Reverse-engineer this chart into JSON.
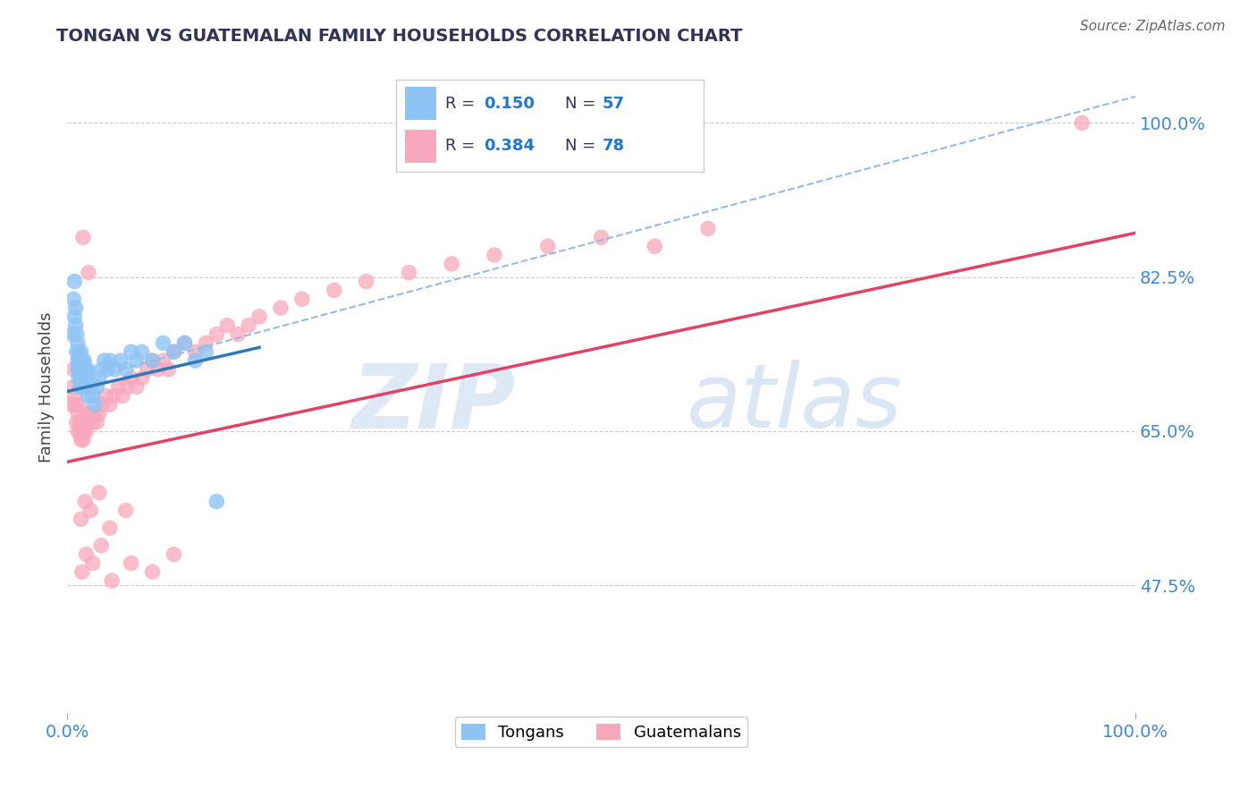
{
  "title": "TONGAN VS GUATEMALAN FAMILY HOUSEHOLDS CORRELATION CHART",
  "source": "Source: ZipAtlas.com",
  "ylabel": "Family Households",
  "xlim": [
    0.0,
    1.0
  ],
  "ylim": [
    0.33,
    1.07
  ],
  "ytick_positions": [
    0.475,
    0.65,
    0.825,
    1.0
  ],
  "ytick_labels": [
    "47.5%",
    "65.0%",
    "82.5%",
    "100.0%"
  ],
  "xtick_positions": [
    0.0,
    1.0
  ],
  "xtick_labels": [
    "0.0%",
    "100.0%"
  ],
  "legend_r1": "R = 0.150",
  "legend_n1": "N = 57",
  "legend_r2": "R = 0.384",
  "legend_n2": "N = 78",
  "tongan_color": "#8ec4f4",
  "guatemalan_color": "#f8a8bc",
  "trendline_tongan_color": "#3377bb",
  "trendline_guatemalan_color": "#dd4466",
  "trendline_dashed_color": "#99bbdd",
  "watermark_zip": "ZIP",
  "watermark_atlas": "atlas",
  "background_color": "#ffffff",
  "tongan_x": [
    0.005,
    0.006,
    0.007,
    0.007,
    0.008,
    0.008,
    0.009,
    0.009,
    0.01,
    0.01,
    0.01,
    0.011,
    0.011,
    0.011,
    0.012,
    0.012,
    0.012,
    0.013,
    0.013,
    0.013,
    0.014,
    0.014,
    0.015,
    0.015,
    0.016,
    0.016,
    0.016,
    0.017,
    0.017,
    0.018,
    0.018,
    0.019,
    0.019,
    0.02,
    0.02,
    0.022,
    0.024,
    0.026,
    0.028,
    0.03,
    0.032,
    0.035,
    0.038,
    0.04,
    0.045,
    0.05,
    0.055,
    0.06,
    0.065,
    0.07,
    0.08,
    0.09,
    0.1,
    0.11,
    0.12,
    0.13,
    0.14
  ],
  "tongan_y": [
    0.76,
    0.8,
    0.78,
    0.82,
    0.77,
    0.79,
    0.76,
    0.74,
    0.73,
    0.72,
    0.75,
    0.74,
    0.72,
    0.71,
    0.73,
    0.72,
    0.7,
    0.74,
    0.72,
    0.71,
    0.73,
    0.71,
    0.72,
    0.7,
    0.73,
    0.72,
    0.7,
    0.71,
    0.7,
    0.72,
    0.71,
    0.72,
    0.7,
    0.71,
    0.69,
    0.7,
    0.69,
    0.68,
    0.7,
    0.71,
    0.72,
    0.73,
    0.72,
    0.73,
    0.72,
    0.73,
    0.72,
    0.74,
    0.73,
    0.74,
    0.73,
    0.75,
    0.74,
    0.75,
    0.73,
    0.74,
    0.57
  ],
  "guatemalan_x": [
    0.004,
    0.005,
    0.006,
    0.007,
    0.008,
    0.009,
    0.01,
    0.01,
    0.011,
    0.012,
    0.012,
    0.013,
    0.013,
    0.014,
    0.015,
    0.015,
    0.016,
    0.017,
    0.018,
    0.019,
    0.02,
    0.022,
    0.024,
    0.026,
    0.028,
    0.03,
    0.033,
    0.036,
    0.04,
    0.044,
    0.048,
    0.052,
    0.056,
    0.06,
    0.065,
    0.07,
    0.075,
    0.08,
    0.085,
    0.09,
    0.1,
    0.11,
    0.12,
    0.13,
    0.14,
    0.15,
    0.16,
    0.17,
    0.18,
    0.2,
    0.22,
    0.25,
    0.28,
    0.32,
    0.36,
    0.4,
    0.45,
    0.5,
    0.55,
    0.6,
    0.013,
    0.017,
    0.022,
    0.03,
    0.04,
    0.055,
    0.014,
    0.018,
    0.024,
    0.032,
    0.042,
    0.06,
    0.08,
    0.1,
    0.015,
    0.02,
    0.095,
    0.95
  ],
  "guatemalan_y": [
    0.68,
    0.7,
    0.72,
    0.69,
    0.68,
    0.66,
    0.67,
    0.65,
    0.68,
    0.66,
    0.65,
    0.66,
    0.64,
    0.65,
    0.66,
    0.64,
    0.65,
    0.66,
    0.65,
    0.67,
    0.66,
    0.67,
    0.66,
    0.67,
    0.66,
    0.67,
    0.68,
    0.69,
    0.68,
    0.69,
    0.7,
    0.69,
    0.7,
    0.71,
    0.7,
    0.71,
    0.72,
    0.73,
    0.72,
    0.73,
    0.74,
    0.75,
    0.74,
    0.75,
    0.76,
    0.77,
    0.76,
    0.77,
    0.78,
    0.79,
    0.8,
    0.81,
    0.82,
    0.83,
    0.84,
    0.85,
    0.86,
    0.87,
    0.86,
    0.88,
    0.55,
    0.57,
    0.56,
    0.58,
    0.54,
    0.56,
    0.49,
    0.51,
    0.5,
    0.52,
    0.48,
    0.5,
    0.49,
    0.51,
    0.87,
    0.83,
    0.72,
    1.0
  ],
  "trendline_tongan_x0": 0.0,
  "trendline_tongan_x1": 0.18,
  "trendline_tongan_y0": 0.695,
  "trendline_tongan_y1": 0.745,
  "trendline_guatemalan_x0": 0.0,
  "trendline_guatemalan_x1": 1.0,
  "trendline_guatemalan_y0": 0.615,
  "trendline_guatemalan_y1": 0.875,
  "trendline_dashed_x0": 0.05,
  "trendline_dashed_x1": 1.0,
  "trendline_dashed_y0": 0.72,
  "trendline_dashed_y1": 1.03
}
